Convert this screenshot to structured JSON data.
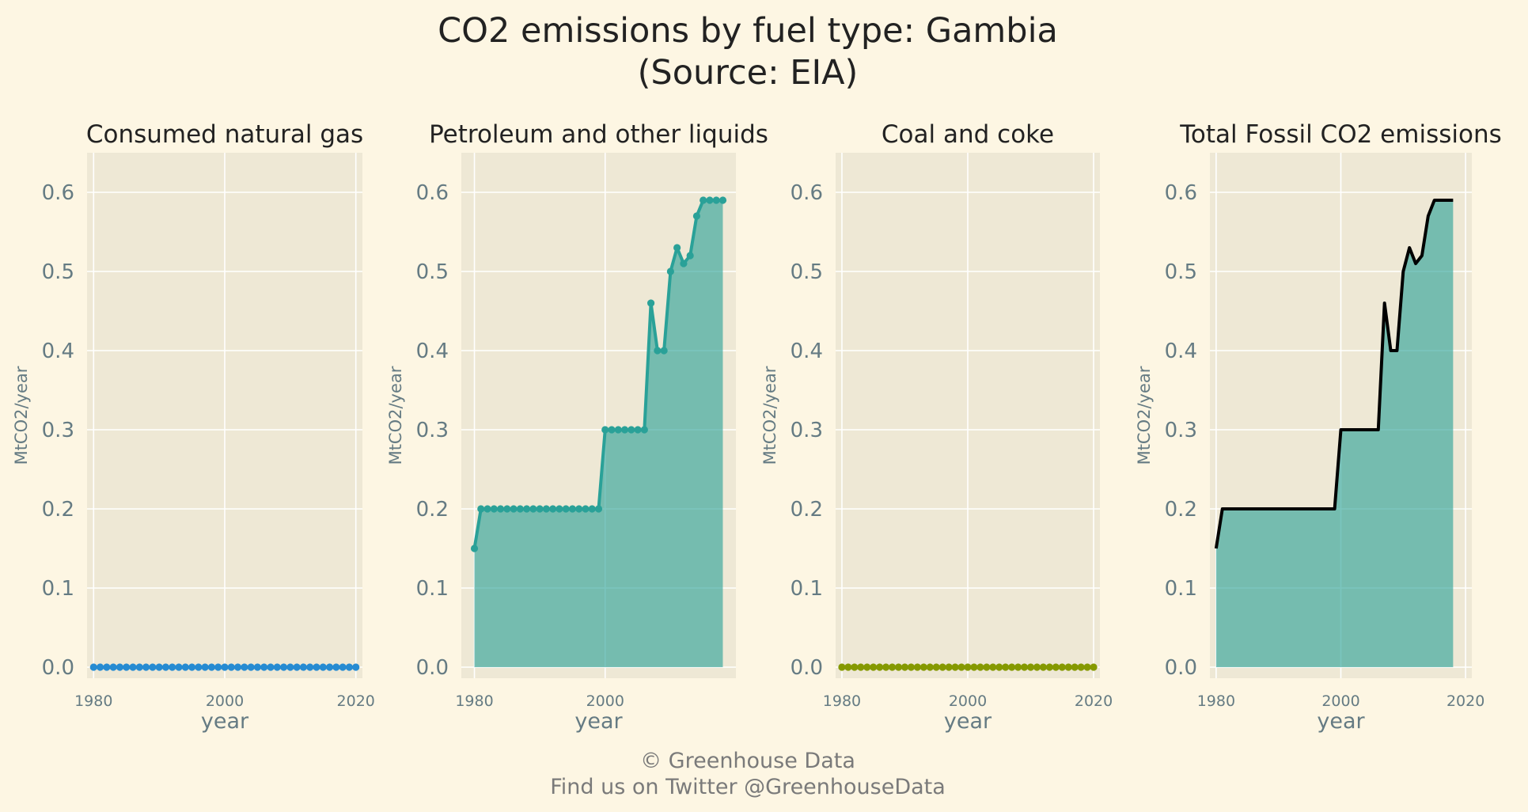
{
  "title_line1": "CO2 emissions by fuel type: Gambia",
  "title_line2": "(Source: EIA)",
  "footer_line1": "© Greenhouse Data",
  "footer_line2": "Find us on Twitter @GreenhouseData",
  "colors": {
    "background": "#fdf6e3",
    "plot_background": "#eee8d5",
    "grid": "#ffffff",
    "gas": "#268bd2",
    "petroleum": "#2aa198",
    "coal": "#859900",
    "total_line": "#000000",
    "total_fill": "#2aa198"
  },
  "chart_data": [
    {
      "type": "line",
      "title": "Consumed natural gas",
      "xlabel": "year",
      "ylabel": "MtCO2/year",
      "xlim": [
        1979,
        2021
      ],
      "ylim": [
        0,
        0.65
      ],
      "x_ticks": [
        1980,
        2000,
        2020
      ],
      "y_ticks": [
        0.0,
        0.1,
        0.2,
        0.3,
        0.4,
        0.5,
        0.6
      ],
      "x_tick_labels": [
        "1980",
        "2000",
        "2020"
      ],
      "y_tick_labels": [
        "0.0",
        "0.1",
        "0.2",
        "0.3",
        "0.4",
        "0.5",
        "0.6"
      ],
      "grid": true,
      "markers": true,
      "fill": false,
      "series": [
        {
          "x_start": 1980,
          "x_end": 2020,
          "values": [
            0,
            0,
            0,
            0,
            0,
            0,
            0,
            0,
            0,
            0,
            0,
            0,
            0,
            0,
            0,
            0,
            0,
            0,
            0,
            0,
            0,
            0,
            0,
            0,
            0,
            0,
            0,
            0,
            0,
            0,
            0,
            0,
            0,
            0,
            0,
            0,
            0,
            0,
            0,
            0,
            0
          ]
        }
      ]
    },
    {
      "type": "area",
      "title": "Petroleum and other liquids",
      "xlabel": "year",
      "ylabel": "MtCO2/year",
      "xlim": [
        1978,
        2020
      ],
      "ylim": [
        0,
        0.65
      ],
      "x_ticks": [
        1980,
        2000
      ],
      "y_ticks": [
        0.0,
        0.1,
        0.2,
        0.3,
        0.4,
        0.5,
        0.6
      ],
      "x_tick_labels": [
        "1980",
        "2000"
      ],
      "y_tick_labels": [
        "0.0",
        "0.1",
        "0.2",
        "0.3",
        "0.4",
        "0.5",
        "0.6"
      ],
      "grid": true,
      "markers": true,
      "fill": true,
      "series": [
        {
          "x_start": 1980,
          "x_end": 2018,
          "values": [
            0.15,
            0.2,
            0.2,
            0.2,
            0.2,
            0.2,
            0.2,
            0.2,
            0.2,
            0.2,
            0.2,
            0.2,
            0.2,
            0.2,
            0.2,
            0.2,
            0.2,
            0.2,
            0.2,
            0.2,
            0.3,
            0.3,
            0.3,
            0.3,
            0.3,
            0.3,
            0.3,
            0.46,
            0.4,
            0.4,
            0.5,
            0.53,
            0.51,
            0.52,
            0.57,
            0.59,
            0.59,
            0.59,
            0.59
          ]
        }
      ]
    },
    {
      "type": "line",
      "title": "Coal and coke",
      "xlabel": "year",
      "ylabel": "MtCO2/year",
      "xlim": [
        1979,
        2021
      ],
      "ylim": [
        0,
        0.65
      ],
      "x_ticks": [
        1980,
        2000,
        2020
      ],
      "y_ticks": [
        0.0,
        0.1,
        0.2,
        0.3,
        0.4,
        0.5,
        0.6
      ],
      "x_tick_labels": [
        "1980",
        "2000",
        "2020"
      ],
      "y_tick_labels": [
        "0.0",
        "0.1",
        "0.2",
        "0.3",
        "0.4",
        "0.5",
        "0.6"
      ],
      "grid": true,
      "markers": true,
      "fill": false,
      "series": [
        {
          "x_start": 1980,
          "x_end": 2020,
          "values": [
            0,
            0,
            0,
            0,
            0,
            0,
            0,
            0,
            0,
            0,
            0,
            0,
            0,
            0,
            0,
            0,
            0,
            0,
            0,
            0,
            0,
            0,
            0,
            0,
            0,
            0,
            0,
            0,
            0,
            0,
            0,
            0,
            0,
            0,
            0,
            0,
            0,
            0,
            0,
            0,
            0
          ]
        }
      ]
    },
    {
      "type": "area",
      "title": "Total Fossil CO2 emissions",
      "xlabel": "year",
      "ylabel": "MtCO2/year",
      "xlim": [
        1979,
        2021
      ],
      "ylim": [
        0,
        0.65
      ],
      "x_ticks": [
        1980,
        2000,
        2020
      ],
      "y_ticks": [
        0.0,
        0.1,
        0.2,
        0.3,
        0.4,
        0.5,
        0.6
      ],
      "x_tick_labels": [
        "1980",
        "2000",
        "2020"
      ],
      "y_tick_labels": [
        "0.0",
        "0.1",
        "0.2",
        "0.3",
        "0.4",
        "0.5",
        "0.6"
      ],
      "grid": true,
      "markers": false,
      "fill": true,
      "series": [
        {
          "x_start": 1980,
          "x_end": 2018,
          "values": [
            0.15,
            0.2,
            0.2,
            0.2,
            0.2,
            0.2,
            0.2,
            0.2,
            0.2,
            0.2,
            0.2,
            0.2,
            0.2,
            0.2,
            0.2,
            0.2,
            0.2,
            0.2,
            0.2,
            0.2,
            0.3,
            0.3,
            0.3,
            0.3,
            0.3,
            0.3,
            0.3,
            0.46,
            0.4,
            0.4,
            0.5,
            0.53,
            0.51,
            0.52,
            0.57,
            0.59,
            0.59,
            0.59,
            0.59
          ]
        }
      ]
    }
  ]
}
